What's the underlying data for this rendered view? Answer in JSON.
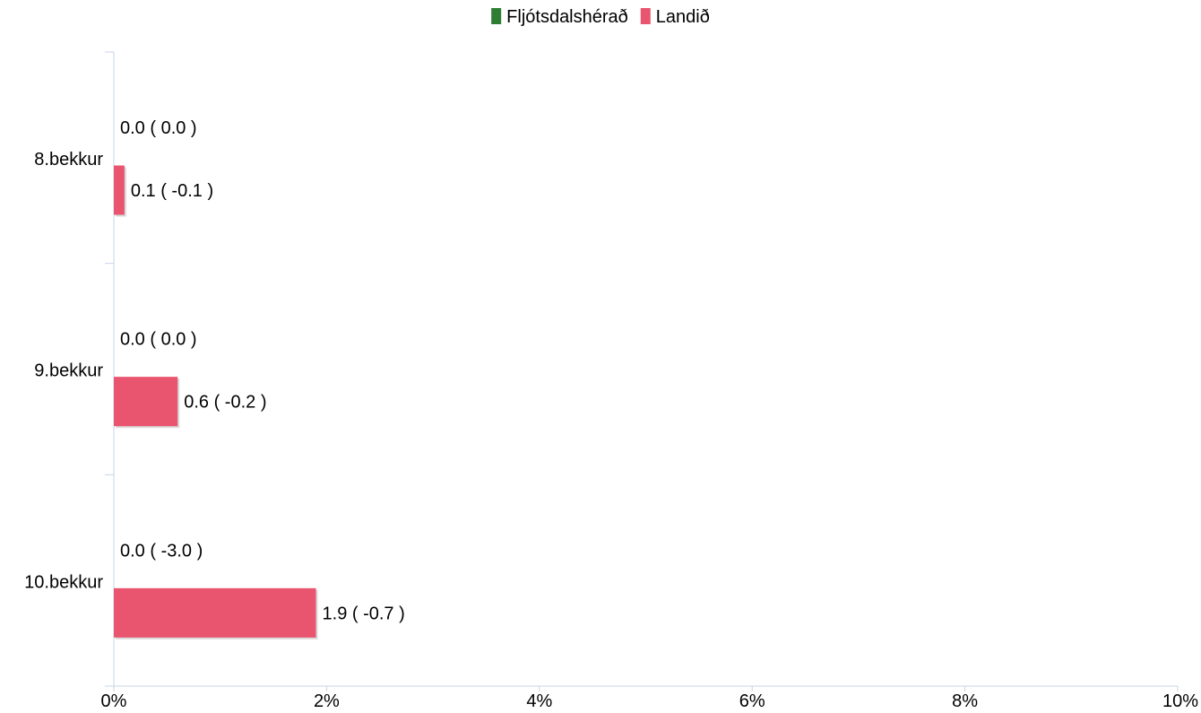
{
  "chart_data": {
    "type": "bar",
    "orientation": "horizontal",
    "title": "",
    "xlabel": "",
    "ylabel": "",
    "xlim": [
      0,
      10
    ],
    "x_ticks": [
      0,
      2,
      4,
      6,
      8,
      10
    ],
    "x_tick_labels": [
      "0%",
      "2%",
      "4%",
      "6%",
      "8%",
      "10%"
    ],
    "categories": [
      "8.bekkur",
      "9.bekkur",
      "10.bekkur"
    ],
    "grid": false,
    "legend_position": "top-center",
    "series": [
      {
        "name": "Fljótsdalshérað",
        "color": "#2e7d32",
        "values": [
          0.0,
          0.0,
          0.0
        ],
        "labels": [
          "0.0 ( 0.0 )",
          "0.0 ( 0.0 )",
          "0.0 ( -3.0 )"
        ]
      },
      {
        "name": "Landið",
        "color": "#e9546f",
        "values": [
          0.1,
          0.6,
          1.9
        ],
        "labels": [
          "0.1 ( -0.1 )",
          "0.6 ( -0.2 )",
          "1.9 ( -0.7 )"
        ]
      }
    ]
  }
}
